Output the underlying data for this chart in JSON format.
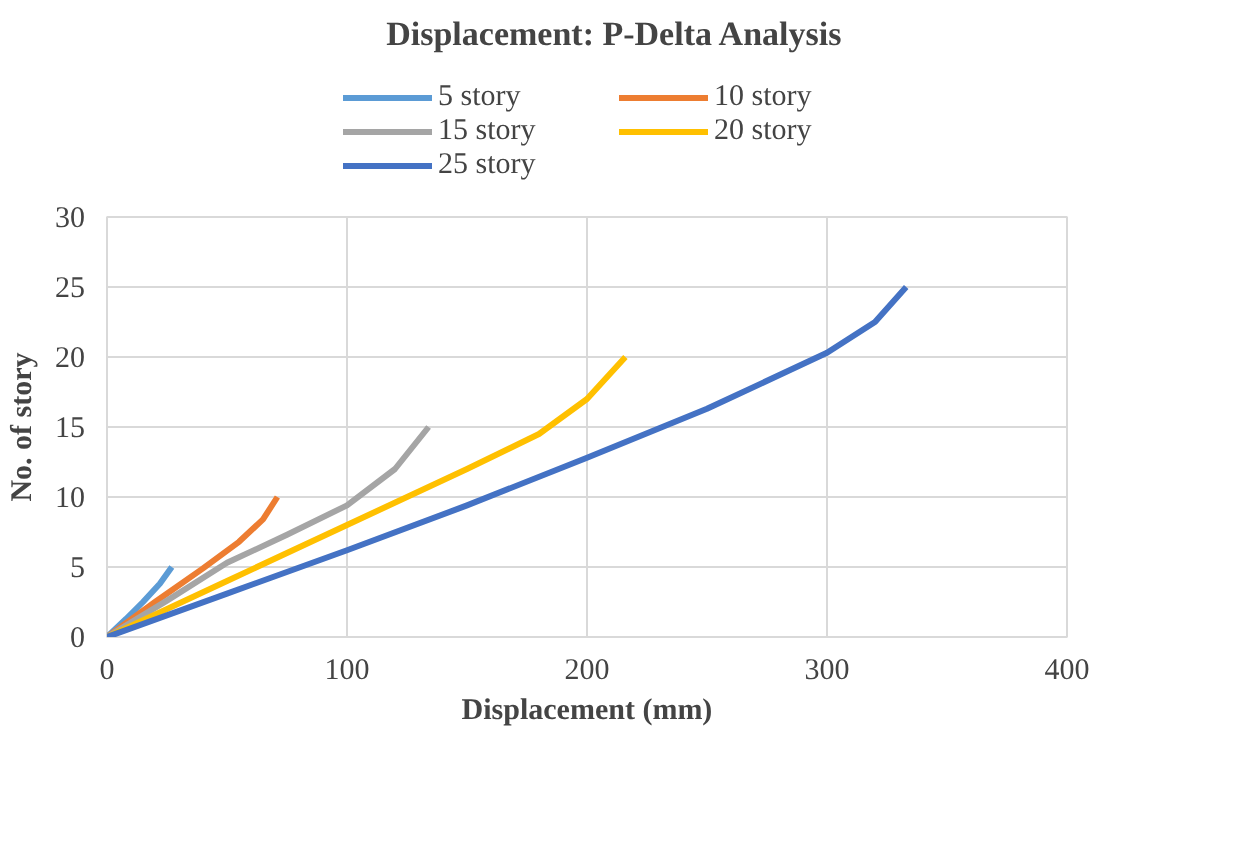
{
  "chart_data": {
    "type": "line",
    "title": "Displacement:  P-Delta Analysis",
    "xlabel": "Displacement (mm)",
    "ylabel": "No. of story",
    "xlim": [
      0,
      400
    ],
    "xticks": [
      0,
      100,
      200,
      300,
      400
    ],
    "ylim": [
      0,
      30
    ],
    "yticks": [
      0,
      5,
      10,
      15,
      20,
      25,
      30
    ],
    "grid": true,
    "legend": "top",
    "marker": "none",
    "line_style": "solid",
    "series": [
      {
        "name": "5 story",
        "color": "#5b9bd5",
        "x": [
          0,
          8,
          15,
          22,
          27
        ],
        "values": [
          0,
          1.3,
          2.5,
          3.8,
          5
        ]
      },
      {
        "name": "10 story",
        "color": "#ed7d31",
        "x": [
          0,
          20,
          40,
          55,
          65,
          71
        ],
        "values": [
          0,
          2.5,
          4.9,
          6.8,
          8.4,
          10
        ]
      },
      {
        "name": "15 story",
        "color": "#a5a5a5",
        "x": [
          0,
          25,
          50,
          75,
          100,
          120,
          134
        ],
        "values": [
          0,
          2.6,
          5.3,
          7.3,
          9.4,
          12,
          15
        ]
      },
      {
        "name": "20 story",
        "color": "#ffc000",
        "x": [
          0,
          50,
          100,
          150,
          180,
          200,
          216
        ],
        "values": [
          0,
          4,
          8,
          12,
          14.5,
          17,
          20
        ]
      },
      {
        "name": "25 story",
        "color": "#4472c4",
        "x": [
          0,
          50,
          100,
          150,
          200,
          250,
          300,
          320,
          333
        ],
        "values": [
          0,
          3.1,
          6.2,
          9.4,
          12.8,
          16.3,
          20.3,
          22.5,
          25
        ]
      }
    ]
  }
}
